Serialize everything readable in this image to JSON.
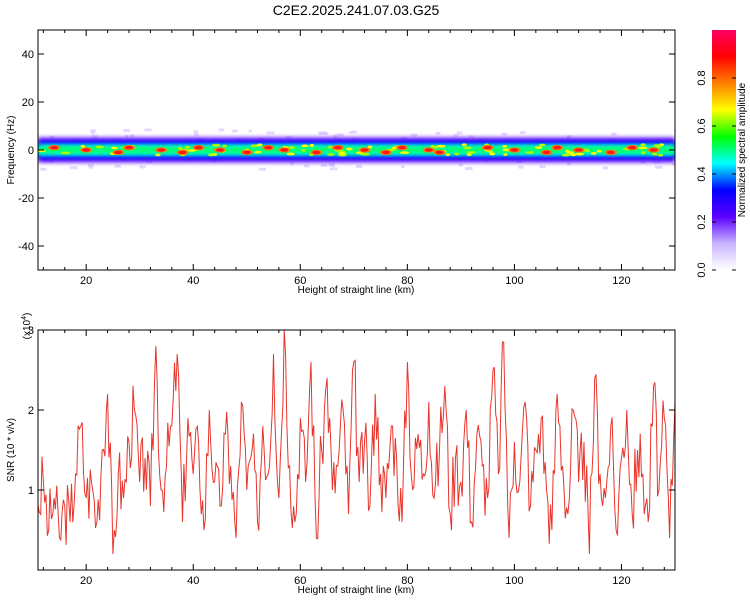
{
  "title": "C2E2.2025.241.07.03.G25",
  "colors": {
    "snr_line": "#e8342b",
    "axis": "#000000",
    "background": "#ffffff"
  },
  "chart_data": [
    {
      "type": "heatmap",
      "name": "spectrogram",
      "xlabel": "Height of straight line (km)",
      "ylabel": "Frequency (Hz)",
      "xlim": [
        11,
        130
      ],
      "ylim": [
        -50,
        50
      ],
      "xticks": [
        20,
        40,
        60,
        80,
        100,
        120
      ],
      "yticks": [
        40,
        20,
        0,
        -20,
        -40
      ],
      "band": {
        "center_hz": 0,
        "half_width_hz": 4,
        "description": "narrow band of energy around 0 Hz across all heights"
      },
      "peak_positions_km": [
        14,
        20,
        26,
        28,
        34,
        38,
        41,
        45,
        50,
        54,
        57,
        63,
        67,
        72,
        76,
        79,
        84,
        86,
        95,
        100,
        106,
        108,
        112,
        118,
        122,
        126
      ],
      "colorbar": {
        "label": "Normalized spectral amplitude",
        "range": [
          0,
          1
        ],
        "ticks": [
          "0.0",
          "0.2",
          "0.4",
          "0.6",
          "0.8"
        ],
        "colormap": [
          "#ffffff",
          "#c8b4ff",
          "#5b00ff",
          "#0000ff",
          "#00ffff",
          "#00ff00",
          "#ffff00",
          "#ff8000",
          "#ff0000",
          "#ff0066"
        ]
      }
    },
    {
      "type": "line",
      "name": "snr",
      "xlabel": "Height of straight line (km)",
      "ylabel": "SNR (10 * v/v)",
      "scale_label": "(x10",
      "scale_exponent": "4",
      "xlim": [
        11,
        130
      ],
      "ylim": [
        0,
        3
      ],
      "xticks": [
        20,
        40,
        60,
        80,
        100,
        120
      ],
      "yticks": [
        1,
        2,
        3
      ],
      "x": [
        11,
        12,
        13,
        14,
        15,
        16,
        17,
        18,
        19,
        20,
        21,
        22,
        23,
        24,
        25,
        26,
        27,
        28,
        29,
        30,
        31,
        32,
        33,
        34,
        35,
        36,
        37,
        38,
        39,
        40,
        41,
        42,
        43,
        44,
        45,
        46,
        47,
        48,
        49,
        50,
        51,
        52,
        53,
        54,
        55,
        56,
        57,
        58,
        59,
        60,
        61,
        62,
        63,
        64,
        65,
        66,
        67,
        68,
        69,
        70,
        71,
        72,
        73,
        74,
        75,
        76,
        77,
        78,
        79,
        80,
        81,
        82,
        83,
        84,
        85,
        86,
        87,
        88,
        89,
        90,
        91,
        92,
        93,
        94,
        95,
        96,
        97,
        98,
        99,
        100,
        101,
        102,
        103,
        104,
        105,
        106,
        107,
        108,
        109,
        110,
        111,
        112,
        113,
        114,
        115,
        116,
        117,
        118,
        119,
        120,
        121,
        122,
        123,
        124,
        125,
        126,
        127,
        128,
        129,
        130
      ],
      "values": [
        0.8,
        1.1,
        0.5,
        0.9,
        0.4,
        0.8,
        0.6,
        1.2,
        1.8,
        0.9,
        1.1,
        0.6,
        1.5,
        2.2,
        0.2,
        1.2,
        0.9,
        1.6,
        2.0,
        1.1,
        1.4,
        0.8,
        2.8,
        1.0,
        1.3,
        1.8,
        2.7,
        0.6,
        1.9,
        1.2,
        1.6,
        0.5,
        2.0,
        1.1,
        0.8,
        1.7,
        1.3,
        0.4,
        2.1,
        1.0,
        1.5,
        0.6,
        1.8,
        1.2,
        2.7,
        0.9,
        3.0,
        1.3,
        0.6,
        1.9,
        1.1,
        2.6,
        0.4,
        1.5,
        2.4,
        1.0,
        1.3,
        2.0,
        0.7,
        2.6,
        1.1,
        1.6,
        0.8,
        2.2,
        1.2,
        0.9,
        1.8,
        1.4,
        0.6,
        2.6,
        1.0,
        1.7,
        1.2,
        2.1,
        0.9,
        1.5,
        2.3,
        0.7,
        1.4,
        1.1,
        2.0,
        0.6,
        1.7,
        1.3,
        0.9,
        2.5,
        1.2,
        2.85,
        0.4,
        1.6,
        1.1,
        2.1,
        0.8,
        1.5,
        1.9,
        1.0,
        0.5,
        2.2,
        1.3,
        0.7,
        2.0,
        1.1,
        1.6,
        0.2,
        2.4,
        1.2,
        0.9,
        1.8,
        0.5,
        1.4,
        2.0,
        0.7,
        1.5,
        1.2,
        0.6,
        2.3,
        1.0,
        1.9,
        0.4,
        2.1
      ]
    }
  ]
}
